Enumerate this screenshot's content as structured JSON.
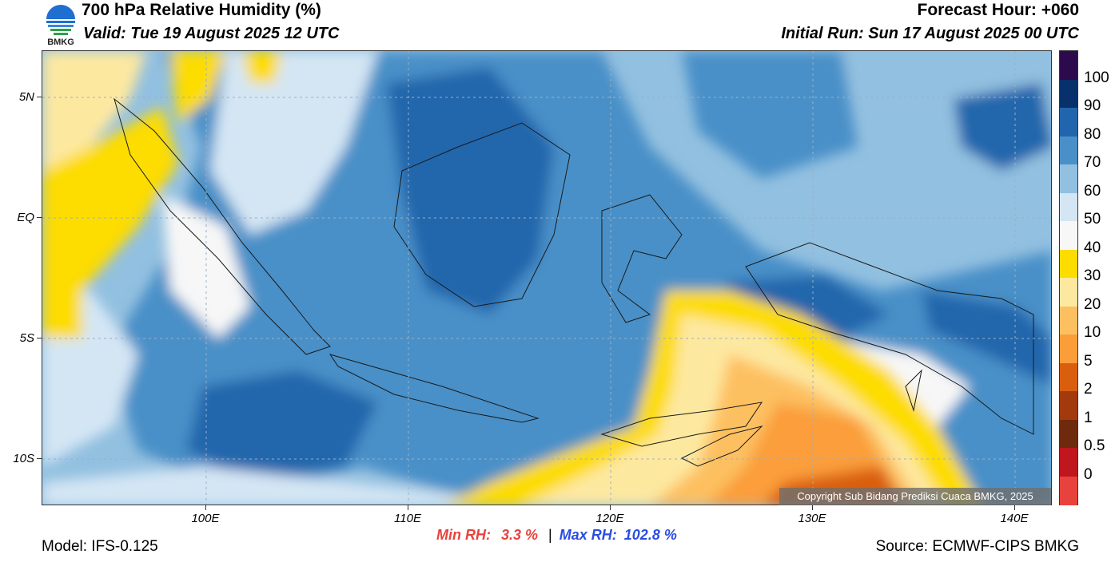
{
  "header": {
    "title": "700 hPa Relative Humidity (%)",
    "valid": "Valid: Tue 19 August 2025 12 UTC",
    "forecast_hour": "Forecast Hour: +060",
    "initial_run": "Initial Run: Sun 17 August 2025 00 UTC",
    "logo_text": "BMKG"
  },
  "map": {
    "lat_labels": [
      "5N",
      "EQ",
      "5S",
      "10S"
    ],
    "lon_labels": [
      "100E",
      "110E",
      "120E",
      "130E",
      "140E"
    ],
    "copyright": "Copyright Sub Bidang Prediksi Cuaca BMKG, 2025"
  },
  "colorbar": {
    "labels": [
      "100",
      "90",
      "80",
      "70",
      "60",
      "50",
      "40",
      "30",
      "20",
      "10",
      "5",
      "2",
      "1",
      "0.5",
      "0"
    ],
    "colors": [
      "#2d0a4e",
      "#08306b",
      "#2166ac",
      "#4a90c8",
      "#92c0e0",
      "#d4e6f4",
      "#f7f7f7",
      "#fddc00",
      "#fde8a0",
      "#fdc060",
      "#fb9e3a",
      "#d95f0e",
      "#a33a0e",
      "#6e2a0c",
      "#c0161e",
      "#e8423c"
    ]
  },
  "footer": {
    "min_label": "Min RH:",
    "min_value": "3.3 %",
    "separator": "|",
    "max_label": "Max RH:",
    "max_value": "102.8 %",
    "model": "Model: IFS-0.125",
    "source": "Source: ECMWF-CIPS BMKG",
    "min_color": "#e8423c",
    "max_color": "#2b4de0"
  }
}
